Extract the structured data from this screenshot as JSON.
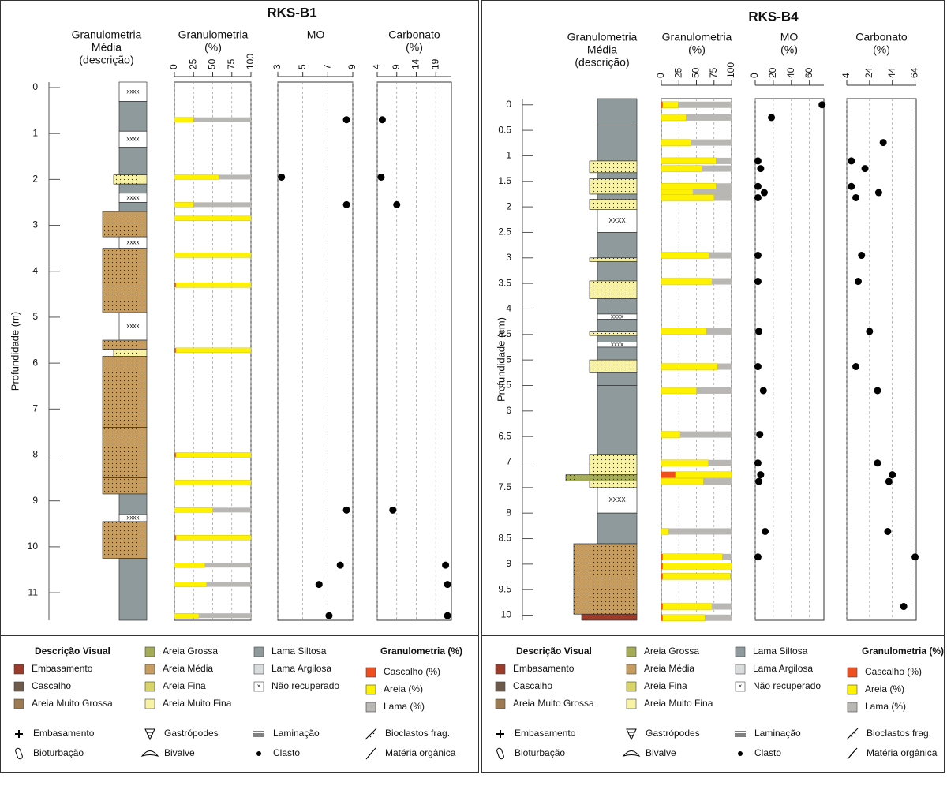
{
  "panels": [
    {
      "title": "RKS-B1",
      "depth_label": "Profundidade (m)",
      "depth_lim": [
        -0.12,
        11.6
      ],
      "depth_ticks": [
        0,
        1,
        2,
        3,
        4,
        5,
        6,
        7,
        8,
        9,
        10,
        11
      ],
      "headers": {
        "lithology": [
          "Granulometria",
          "Média",
          "(descrição)"
        ],
        "granulometry": [
          "Granulometria",
          "(%)"
        ],
        "mo": [
          "MO"
        ],
        "carbonate": [
          "Carbonato",
          "(%)"
        ]
      },
      "granulometry_lim": [
        0,
        100
      ],
      "granulometry_ticks": [
        0,
        25,
        50,
        75,
        100
      ],
      "mo_lim": [
        3,
        9
      ],
      "mo_ticks": [
        3,
        5,
        7,
        9
      ],
      "carbonate_lim": [
        4,
        23
      ],
      "carbonate_ticks": [
        4,
        9,
        14,
        19
      ],
      "layers": [
        {
          "top": -0.12,
          "bottom": 0.3,
          "color": "#ffffff",
          "label": "xxxx"
        },
        {
          "top": 0.3,
          "bottom": 0.95,
          "color": "#8e9a9c"
        },
        {
          "top": 0.95,
          "bottom": 1.3,
          "color": "#ffffff",
          "label": "xxxx"
        },
        {
          "top": 1.3,
          "bottom": 1.9,
          "color": "#8e9a9c"
        },
        {
          "top": 1.9,
          "bottom": 2.1,
          "color": "#f8f2a4"
        },
        {
          "top": 2.1,
          "bottom": 2.3,
          "color": "#8e9a9c"
        },
        {
          "top": 2.3,
          "bottom": 2.5,
          "color": "#ffffff",
          "label": "xxxx"
        },
        {
          "top": 2.5,
          "bottom": 2.7,
          "color": "#8e9a9c"
        },
        {
          "top": 2.7,
          "bottom": 3.25,
          "color": "#c79d5f"
        },
        {
          "top": 3.25,
          "bottom": 3.5,
          "color": "#ffffff",
          "label": "xxxx"
        },
        {
          "top": 3.5,
          "bottom": 4.9,
          "color": "#c79d5f"
        },
        {
          "top": 4.9,
          "bottom": 5.5,
          "color": "#ffffff",
          "label": "xxxx"
        },
        {
          "top": 5.5,
          "bottom": 5.7,
          "color": "#c79d5f"
        },
        {
          "top": 5.7,
          "bottom": 5.85,
          "color": "#f8f2a4"
        },
        {
          "top": 5.85,
          "bottom": 7.4,
          "color": "#c79d5f"
        },
        {
          "top": 7.4,
          "bottom": 8.5,
          "color": "#c79d5f"
        },
        {
          "top": 8.5,
          "bottom": 8.85,
          "color": "#c79d5f"
        },
        {
          "top": 8.85,
          "bottom": 9.3,
          "color": "#8e9a9c"
        },
        {
          "top": 9.3,
          "bottom": 9.45,
          "color": "#ffffff",
          "label": "xxxx"
        },
        {
          "top": 9.45,
          "bottom": 10.25,
          "color": "#c79d5f"
        },
        {
          "top": 10.25,
          "bottom": 11.6,
          "color": "#8e9a9c"
        }
      ],
      "samples": [
        {
          "depth": 0.7,
          "gravel": 0,
          "sand": 25,
          "mud": 75,
          "mo": 8.5,
          "carbonate": 5.3
        },
        {
          "depth": 1.95,
          "gravel": 0,
          "sand": 58,
          "mud": 42,
          "mo": 3.3,
          "carbonate": 5
        },
        {
          "depth": 2.55,
          "gravel": 0,
          "sand": 25,
          "mud": 75,
          "mo": 8.5,
          "carbonate": 9
        },
        {
          "depth": 2.85,
          "gravel": 0,
          "sand": 100,
          "mud": 0,
          "mo": null,
          "carbonate": null
        },
        {
          "depth": 3.65,
          "gravel": 0,
          "sand": 100,
          "mud": 0,
          "mo": null,
          "carbonate": null
        },
        {
          "depth": 4.3,
          "gravel": 2,
          "sand": 98,
          "mud": 0,
          "mo": null,
          "carbonate": null
        },
        {
          "depth": 5.72,
          "gravel": 2,
          "sand": 98,
          "mud": 0,
          "mo": null,
          "carbonate": null
        },
        {
          "depth": 8.0,
          "gravel": 2,
          "sand": 98,
          "mud": 0,
          "mo": null,
          "carbonate": null
        },
        {
          "depth": 8.6,
          "gravel": 0,
          "sand": 100,
          "mud": 0,
          "mo": null,
          "carbonate": null
        },
        {
          "depth": 9.2,
          "gravel": 0,
          "sand": 50,
          "mud": 50,
          "mo": 8.5,
          "carbonate": 8
        },
        {
          "depth": 9.8,
          "gravel": 2,
          "sand": 98,
          "mud": 0,
          "mo": null,
          "carbonate": null
        },
        {
          "depth": 10.4,
          "gravel": 0,
          "sand": 40,
          "mud": 60,
          "mo": 8,
          "carbonate": 21.5
        },
        {
          "depth": 10.82,
          "gravel": 0,
          "sand": 42,
          "mud": 58,
          "mo": 6.3,
          "carbonate": 22
        },
        {
          "depth": 11.5,
          "gravel": 0,
          "sand": 32,
          "mud": 68,
          "mo": 7.1,
          "carbonate": 22
        }
      ]
    },
    {
      "title": "RKS-B4",
      "depth_label": "Profundidade (cm)",
      "depth_lim": [
        -0.12,
        10.1
      ],
      "depth_ticks": [
        0,
        0.5,
        1,
        1.5,
        2,
        2.5,
        3,
        3.5,
        4,
        4.5,
        5,
        5.5,
        6,
        6.5,
        7,
        7.5,
        8,
        8.5,
        9,
        9.5,
        10
      ],
      "headers": {
        "lithology": [
          "Granulometria",
          "Média",
          "(descrição)"
        ],
        "granulometry": [
          "Granulometria",
          "(%)"
        ],
        "mo": [
          "MO",
          "(%)"
        ],
        "carbonate": [
          "Carbonato",
          "(%)"
        ]
      },
      "granulometry_lim": [
        0,
        100
      ],
      "granulometry_ticks": [
        0,
        25,
        50,
        75,
        100
      ],
      "mo_lim": [
        0,
        76
      ],
      "mo_ticks": [
        0,
        20,
        40,
        60
      ],
      "carbonate_lim": [
        4,
        65
      ],
      "carbonate_ticks": [
        4,
        24,
        44,
        64
      ],
      "layers": [
        {
          "top": -0.12,
          "bottom": 0.4,
          "color": "#8e9a9c"
        },
        {
          "top": 0.4,
          "bottom": 1.1,
          "color": "#8e9a9c"
        },
        {
          "top": 1.1,
          "bottom": 1.33,
          "color": "#f8f2a4"
        },
        {
          "top": 1.33,
          "bottom": 1.45,
          "color": "#8e9a9c"
        },
        {
          "top": 1.45,
          "bottom": 1.75,
          "color": "#f8f2a4"
        },
        {
          "top": 1.75,
          "bottom": 1.85,
          "color": "#8e9a9c"
        },
        {
          "top": 1.85,
          "bottom": 2.05,
          "color": "#f8f2a4"
        },
        {
          "top": 2.05,
          "bottom": 2.5,
          "color": "#ffffff",
          "label": "XXXX"
        },
        {
          "top": 2.5,
          "bottom": 3.0,
          "color": "#8e9a9c"
        },
        {
          "top": 3.0,
          "bottom": 3.07,
          "color": "#f8f2a4"
        },
        {
          "top": 3.07,
          "bottom": 3.45,
          "color": "#8e9a9c"
        },
        {
          "top": 3.45,
          "bottom": 3.8,
          "color": "#f8f2a4"
        },
        {
          "top": 3.8,
          "bottom": 4.1,
          "color": "#8e9a9c"
        },
        {
          "top": 4.1,
          "bottom": 4.2,
          "color": "#ffffff",
          "label": "xxxx"
        },
        {
          "top": 4.2,
          "bottom": 4.45,
          "color": "#8e9a9c"
        },
        {
          "top": 4.45,
          "bottom": 4.52,
          "color": "#f8f2a4"
        },
        {
          "top": 4.52,
          "bottom": 4.65,
          "color": "#8e9a9c"
        },
        {
          "top": 4.65,
          "bottom": 4.75,
          "color": "#ffffff",
          "label": "xxxx"
        },
        {
          "top": 4.75,
          "bottom": 5.0,
          "color": "#8e9a9c"
        },
        {
          "top": 5.0,
          "bottom": 5.25,
          "color": "#f8f2a4"
        },
        {
          "top": 5.25,
          "bottom": 5.5,
          "color": "#8e9a9c"
        },
        {
          "top": 5.5,
          "bottom": 6.85,
          "color": "#8e9a9c"
        },
        {
          "top": 6.85,
          "bottom": 7.25,
          "color": "#f8f2a4"
        },
        {
          "top": 7.25,
          "bottom": 7.37,
          "color": "#a4ad55"
        },
        {
          "top": 7.37,
          "bottom": 7.5,
          "color": "#f8f2a4"
        },
        {
          "top": 7.5,
          "bottom": 8.0,
          "color": "#ffffff",
          "label": "XXXX"
        },
        {
          "top": 8.0,
          "bottom": 8.6,
          "color": "#8e9a9c"
        },
        {
          "top": 8.6,
          "bottom": 9.98,
          "color": "#c79d5f"
        },
        {
          "top": 9.98,
          "bottom": 10.1,
          "color": "#9c3b2a"
        }
      ],
      "samples": [
        {
          "depth": 0,
          "gravel": 2,
          "sand": 22,
          "mud": 76,
          "mo": 74,
          "carbonate": null
        },
        {
          "depth": 0.25,
          "gravel": 0,
          "sand": 35,
          "mud": 65,
          "mo": 18,
          "carbonate": null
        },
        {
          "depth": 0.74,
          "gravel": 0,
          "sand": 42,
          "mud": 58,
          "mo": null,
          "carbonate": 36
        },
        {
          "depth": 1.1,
          "gravel": 0,
          "sand": 78,
          "mud": 22,
          "mo": 3,
          "carbonate": 8
        },
        {
          "depth": 1.25,
          "gravel": 0,
          "sand": 58,
          "mud": 42,
          "mo": 6,
          "carbonate": 20
        },
        {
          "depth": 1.6,
          "gravel": 0,
          "sand": 78,
          "mud": 22,
          "mo": 3,
          "carbonate": 8
        },
        {
          "depth": 1.72,
          "gravel": 0,
          "sand": 45,
          "mud": 55,
          "mo": 10,
          "carbonate": 32
        },
        {
          "depth": 1.82,
          "gravel": 0,
          "sand": 75,
          "mud": 25,
          "mo": 3,
          "carbonate": 12
        },
        {
          "depth": 2.95,
          "gravel": 0,
          "sand": 68,
          "mud": 32,
          "mo": 3,
          "carbonate": 17
        },
        {
          "depth": 3.46,
          "gravel": 0,
          "sand": 72,
          "mud": 28,
          "mo": 3,
          "carbonate": 14
        },
        {
          "depth": 4.44,
          "gravel": 0,
          "sand": 64,
          "mud": 36,
          "mo": 4,
          "carbonate": 24
        },
        {
          "depth": 5.13,
          "gravel": 0,
          "sand": 80,
          "mud": 20,
          "mo": 3,
          "carbonate": 12
        },
        {
          "depth": 5.6,
          "gravel": 0,
          "sand": 50,
          "mud": 50,
          "mo": 9,
          "carbonate": 31
        },
        {
          "depth": 6.46,
          "gravel": 0,
          "sand": 27,
          "mud": 73,
          "mo": 5,
          "carbonate": null
        },
        {
          "depth": 7.02,
          "gravel": 0,
          "sand": 67,
          "mud": 33,
          "mo": 3,
          "carbonate": 31
        },
        {
          "depth": 7.25,
          "gravel": 20,
          "sand": 80,
          "mud": 0,
          "mo": 6,
          "carbonate": 44
        },
        {
          "depth": 7.38,
          "gravel": 0,
          "sand": 60,
          "mud": 40,
          "mo": 4,
          "carbonate": 41
        },
        {
          "depth": 8.36,
          "gravel": 0,
          "sand": 10,
          "mud": 90,
          "mo": 11,
          "carbonate": 40
        },
        {
          "depth": 8.86,
          "gravel": 2,
          "sand": 85,
          "mud": 13,
          "mo": 3,
          "carbonate": 64
        },
        {
          "depth": 9.04,
          "gravel": 2,
          "sand": 98,
          "mud": 0,
          "mo": null,
          "carbonate": null
        },
        {
          "depth": 9.24,
          "gravel": 2,
          "sand": 96,
          "mud": 2,
          "mo": null,
          "carbonate": null
        },
        {
          "depth": 9.83,
          "gravel": 2,
          "sand": 70,
          "mud": 28,
          "mo": null,
          "carbonate": 54
        },
        {
          "depth": 10.05,
          "gravel": 2,
          "sand": 60,
          "mud": 38,
          "mo": null,
          "carbonate": null
        }
      ]
    }
  ],
  "legend": {
    "lithology_title": "Descrição Visual",
    "lithologies": [
      {
        "name": "Embasamento",
        "color": "#9c3b2a"
      },
      {
        "name": "Cascalho",
        "color": "#6e5a4b"
      },
      {
        "name": "Areia Muito Grossa",
        "color": "#9e7a52"
      },
      {
        "name": "Areia Grossa",
        "color": "#a4ad55"
      },
      {
        "name": "Areia Média",
        "color": "#c79d5f"
      },
      {
        "name": "Areia Fina",
        "color": "#d8d468"
      },
      {
        "name": "Areia Muito Fina",
        "color": "#f8f2a4"
      },
      {
        "name": "Lama Siltosa",
        "color": "#8e9a9c"
      },
      {
        "name": "Lama Argilosa",
        "color": "#d9dddd"
      },
      {
        "name": "Não recuperado",
        "color": "#ffffff"
      }
    ],
    "granulometry_title": "Granulometria (%)",
    "fractions": [
      {
        "name": "Cascalho (%)",
        "color": "#f04e1d"
      },
      {
        "name": "Areia (%)",
        "color": "#fff200"
      },
      {
        "name": "Lama (%)",
        "color": "#b9b7b3"
      }
    ],
    "symbols": [
      "Embasamento",
      "Gastrópodes",
      "Laminação",
      "Bioclastos frag.",
      "Bioturbação",
      "Bivalve",
      "Clasto",
      "Matéria orgânica"
    ]
  }
}
